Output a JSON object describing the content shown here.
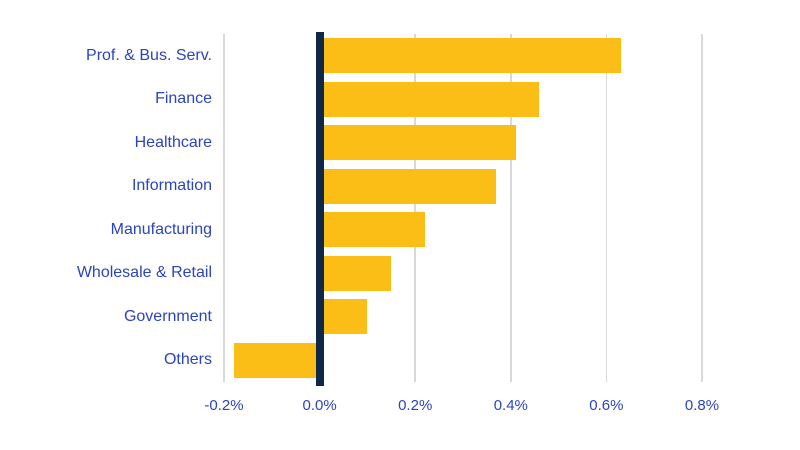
{
  "chart_data": {
    "type": "bar",
    "orientation": "horizontal",
    "title": "",
    "xlabel": "",
    "ylabel": "",
    "categories": [
      "Prof. & Bus. Serv.",
      "Finance",
      "Healthcare",
      "Information",
      "Manufacturing",
      "Wholesale & Retail",
      "Government",
      "Others"
    ],
    "values": [
      0.63,
      0.46,
      0.41,
      0.37,
      0.22,
      0.15,
      0.1,
      -0.18
    ],
    "unit": "%",
    "xlim": [
      -0.2,
      0.8
    ],
    "x_ticks": [
      -0.2,
      0.0,
      0.2,
      0.4,
      0.6,
      0.8
    ],
    "x_tick_labels": [
      "-0.2%",
      "0.0%",
      "0.2%",
      "0.4%",
      "0.6%",
      "0.8%"
    ],
    "grid": "vertical-only",
    "legend": "none",
    "zero_baseline_emphasized": true,
    "colors": {
      "bar": "#fbbe17",
      "zero_line": "#102747",
      "text": "#2b44bf",
      "gridline": "#d9d9d9",
      "background": "#ffffff"
    }
  }
}
